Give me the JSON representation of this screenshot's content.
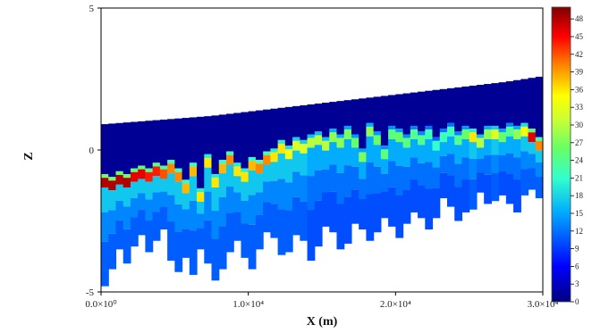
{
  "chart_data": {
    "type": "heatmap",
    "title": "",
    "xlabel": "X (m)",
    "ylabel": "Z",
    "xlim": [
      0,
      30000
    ],
    "ylim": [
      -5,
      5
    ],
    "x_ticks": [
      {
        "value": 0,
        "label": "0.0×10⁰"
      },
      {
        "value": 10000,
        "label": "1.0×10⁴"
      },
      {
        "value": 20000,
        "label": "2.0×10⁴"
      },
      {
        "value": 30000,
        "label": "3.0×10⁴"
      }
    ],
    "y_ticks": [
      {
        "value": -5,
        "label": "-5"
      },
      {
        "value": 0,
        "label": "0"
      },
      {
        "value": 5,
        "label": "5"
      }
    ],
    "colorbar": {
      "min": 0,
      "max": 50,
      "tick_values": [
        0,
        3,
        6,
        9,
        12,
        15,
        18,
        21,
        24,
        27,
        30,
        33,
        36,
        39,
        42,
        45,
        48
      ],
      "tick_labels": [
        "0",
        "3",
        "6",
        "9",
        "12",
        "15",
        "18",
        "21",
        "24",
        "27",
        "30",
        "33",
        "36",
        "39",
        "42",
        "45",
        "48"
      ]
    },
    "top_surface": {
      "x": [
        0,
        2500,
        5000,
        7500,
        10000,
        12500,
        15000,
        17500,
        20000,
        22500,
        25000,
        27500,
        30000
      ],
      "z": [
        0.9,
        1.0,
        1.1,
        1.2,
        1.35,
        1.5,
        1.65,
        1.8,
        1.95,
        2.1,
        2.25,
        2.4,
        2.6
      ]
    },
    "hot_layer": {
      "x": [
        0,
        500,
        1000,
        1500,
        2000,
        2500,
        3000,
        3500,
        4000,
        4500,
        5000,
        5500,
        6000,
        6500,
        7000,
        7500,
        8000,
        8500,
        9000,
        9500,
        10000,
        10500,
        11000,
        11500,
        12000,
        12500,
        13000,
        13500,
        14000,
        14500,
        15000,
        15500,
        16000,
        16500,
        17000,
        17500,
        18000,
        18500,
        19000,
        19500,
        20000,
        20500,
        21000,
        21500,
        22000,
        22500,
        23000,
        23500,
        24000,
        24500,
        25000,
        25500,
        26000,
        26500,
        27000,
        27500,
        28000,
        28500,
        29000,
        29500
      ],
      "z": [
        -1.1,
        -1.2,
        -1.0,
        -1.1,
        -0.9,
        -0.8,
        -0.9,
        -0.7,
        -0.8,
        -0.6,
        -0.9,
        -1.3,
        -0.7,
        -1.6,
        -0.4,
        -1.1,
        -0.6,
        -0.3,
        -0.7,
        -0.9,
        -0.5,
        -0.6,
        -0.3,
        -0.2,
        0.1,
        -0.1,
        0.2,
        0.1,
        0.3,
        0.4,
        0.2,
        0.5,
        0.3,
        0.6,
        0.3,
        -0.2,
        0.7,
        0.4,
        -0.1,
        0.6,
        0.5,
        0.3,
        0.6,
        0.4,
        0.6,
        0.2,
        0.5,
        0.7,
        0.4,
        0.6,
        0.5,
        0.3,
        0.6,
        0.6,
        0.5,
        0.7,
        0.6,
        0.7,
        0.5,
        0.2
      ],
      "value": [
        48,
        48,
        48,
        48,
        46,
        46,
        44,
        44,
        42,
        40,
        40,
        38,
        38,
        36,
        36,
        36,
        38,
        40,
        36,
        36,
        38,
        40,
        40,
        36,
        36,
        34,
        32,
        32,
        30,
        30,
        30,
        28,
        28,
        27,
        26,
        27,
        28,
        26,
        25,
        25,
        26,
        25,
        24,
        24,
        22,
        21,
        22,
        22,
        24,
        26,
        36,
        30,
        28,
        32,
        26,
        24,
        28,
        34,
        46,
        40
      ]
    },
    "lower_boundary": {
      "x": [
        0,
        500,
        1000,
        1500,
        2000,
        2500,
        3000,
        3500,
        4000,
        4500,
        5000,
        5500,
        6000,
        6500,
        7000,
        7500,
        8000,
        8500,
        9000,
        9500,
        10000,
        10500,
        11000,
        11500,
        12000,
        12500,
        13000,
        13500,
        14000,
        14500,
        15000,
        15500,
        16000,
        16500,
        17000,
        17500,
        18000,
        18500,
        19000,
        19500,
        20000,
        20500,
        21000,
        21500,
        22000,
        22500,
        23000,
        23500,
        24000,
        24500,
        25000,
        25500,
        26000,
        26500,
        27000,
        27500,
        28000,
        28500,
        29000,
        29500
      ],
      "z": [
        -4.8,
        -4.2,
        -3.5,
        -4.0,
        -3.4,
        -3.0,
        -3.6,
        -3.2,
        -2.8,
        -3.9,
        -4.3,
        -3.8,
        -4.4,
        -3.5,
        -4.0,
        -4.6,
        -4.2,
        -3.6,
        -3.2,
        -3.8,
        -4.2,
        -3.5,
        -2.9,
        -3.1,
        -3.7,
        -3.6,
        -3.0,
        -3.2,
        -3.9,
        -3.4,
        -2.7,
        -2.9,
        -3.5,
        -3.3,
        -2.6,
        -2.8,
        -3.2,
        -2.9,
        -2.4,
        -2.7,
        -3.1,
        -2.6,
        -2.2,
        -2.4,
        -2.8,
        -2.4,
        -1.7,
        -2.0,
        -2.5,
        -2.2,
        -2.1,
        -1.5,
        -1.9,
        -1.8,
        -1.6,
        -1.9,
        -2.2,
        -1.6,
        -1.4,
        -1.7
      ]
    }
  }
}
